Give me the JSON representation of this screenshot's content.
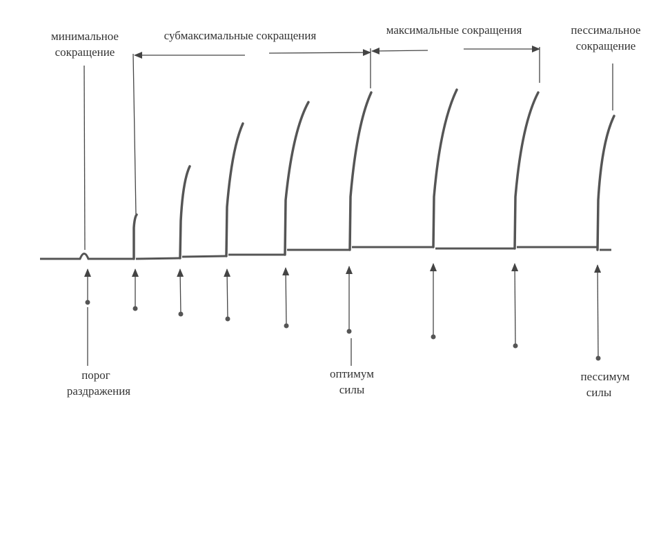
{
  "labels": [
    {
      "lines": [
        "минимальное",
        "сокращение"
      ]
    },
    {
      "lines": [
        "субмаксимальные сокращения"
      ]
    },
    {
      "lines": [
        "максимальные сокращения"
      ]
    },
    {
      "lines": [
        "пессимальное",
        "сокращение"
      ]
    },
    {
      "lines": [
        "порог",
        "раздражения"
      ]
    },
    {
      "lines": [
        "оптимум",
        "силы"
      ]
    },
    {
      "lines": [
        "пессимум",
        "силы"
      ]
    }
  ]
}
